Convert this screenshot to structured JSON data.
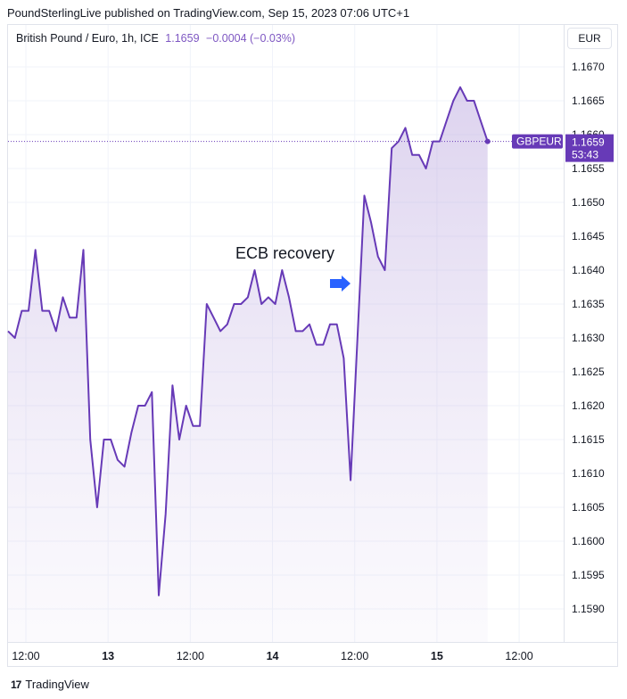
{
  "header": {
    "published": "PoundSterlingLive published on TradingView.com, Sep 15, 2023 07:06 UTC+1"
  },
  "legend": {
    "symbol": "British Pound / Euro, 1h, ICE",
    "price": "1.1659",
    "change": "−0.0004 (−0.03%)"
  },
  "currency_button": "EUR",
  "price_tag": {
    "symbol": "GBPEUR",
    "price": "1.1659",
    "countdown": "53:43"
  },
  "footer": {
    "logo": "17",
    "brand": "TradingView"
  },
  "colors": {
    "line": "#673ab7",
    "tag": "#673ab7",
    "grid": "#f0f3fa",
    "text": "#131722"
  },
  "chart_data": {
    "type": "area",
    "annotation": "ECB recovery",
    "ylim": [
      1.1584,
      1.1674
    ],
    "yticks": [
      "1.1670",
      "1.1665",
      "1.1660",
      "1.1655",
      "1.1650",
      "1.1645",
      "1.1640",
      "1.1635",
      "1.1630",
      "1.1625",
      "1.1620",
      "1.1615",
      "1.1610",
      "1.1605",
      "1.1600",
      "1.1595",
      "1.1590"
    ],
    "xticks": [
      {
        "label": "12:00",
        "bar": 2.6,
        "bold": false
      },
      {
        "label": "13",
        "bar": 14.6,
        "bold": true
      },
      {
        "label": "12:00",
        "bar": 26.6,
        "bold": false
      },
      {
        "label": "14",
        "bar": 38.6,
        "bold": true
      },
      {
        "label": "12:00",
        "bar": 50.6,
        "bold": false
      },
      {
        "label": "15",
        "bar": 62.6,
        "bold": true
      },
      {
        "label": "12:00",
        "bar": 74.6,
        "bold": false
      }
    ],
    "x_range": [
      0,
      81.1
    ],
    "series": [
      {
        "values": [
          1.1631,
          1.163,
          1.1634,
          1.1634,
          1.1643,
          1.1634,
          1.1634,
          1.1631,
          1.1636,
          1.1633,
          1.1633,
          1.1643,
          1.1615,
          1.1605,
          1.1615,
          1.1615,
          1.1612,
          1.1611,
          1.1616,
          1.162,
          1.162,
          1.1622,
          1.1592,
          1.1604,
          1.1623,
          1.1615,
          1.162,
          1.1617,
          1.1617,
          1.1635,
          1.1633,
          1.1631,
          1.1632,
          1.1635,
          1.1635,
          1.1636,
          1.164,
          1.1635,
          1.1636,
          1.1635,
          1.164,
          1.1636,
          1.1631,
          1.1631,
          1.1632,
          1.1629,
          1.1629,
          1.1632,
          1.1632,
          1.1627,
          1.1609,
          1.163,
          1.1651,
          1.1647,
          1.1642,
          1.164,
          1.1658,
          1.1659,
          1.1661,
          1.1657,
          1.1657,
          1.1655,
          1.1659,
          1.1659,
          1.1662,
          1.1665,
          1.1667,
          1.1665,
          1.1665,
          1.1662,
          1.1659
        ]
      }
    ]
  }
}
